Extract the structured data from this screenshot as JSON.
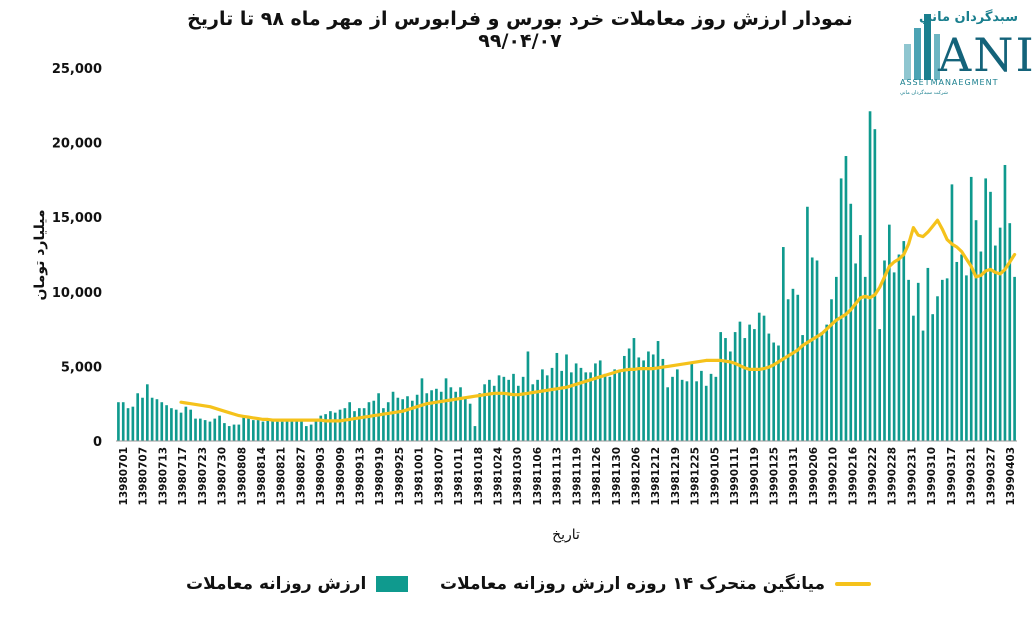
{
  "title": "نمودار ارزش روز معاملات خرد بورس و فرابورس از مهر ماه ۹۸ تا تاریخ ۹۹/۰۴/۰۷",
  "logo": {
    "name_fa": "سبدگردان ماني",
    "mark": "ANI",
    "name_en": "ASSETMANAEGMENT",
    "tagline": "شرکت سبدگردان ماني"
  },
  "colors": {
    "bar": "#0f9a8e",
    "line": "#f5c21b",
    "text": "#111111",
    "logo": "#1a7f8e"
  },
  "chart_data": {
    "type": "bar",
    "title": "نمودار ارزش روز معاملات خرد بورس و فرابورس از مهر ماه ۹۸ تا تاریخ ۹۹/۰۴/۰۷",
    "xlabel": "تاریخ",
    "ylabel": "میلیارد تومان",
    "ylim": [
      0,
      25000
    ],
    "yticks": [
      0,
      5000,
      10000,
      15000,
      20000,
      25000
    ],
    "ytick_labels": [
      "0",
      "5,000",
      "10,000",
      "15,000",
      "20,000",
      "25,000"
    ],
    "grid": false,
    "legend_position": "bottom",
    "xtick_labels": [
      "13980701",
      "13980707",
      "13980713",
      "13980717",
      "13980723",
      "13980730",
      "13980808",
      "13980814",
      "13980821",
      "13980827",
      "13980903",
      "13980909",
      "13980913",
      "13980919",
      "13980925",
      "13981001",
      "13981007",
      "13981011",
      "13981018",
      "13981024",
      "13981030",
      "13981106",
      "13981113",
      "13981119",
      "13981126",
      "13981130",
      "13981206",
      "13981212",
      "13981219",
      "13981225",
      "13990105",
      "13990111",
      "13990119",
      "13990125",
      "13990131",
      "13990206",
      "13990210",
      "13990216",
      "13990222",
      "13990228",
      "13990231",
      "13990310",
      "13990317",
      "13990321",
      "13990327",
      "13990403"
    ],
    "series": [
      {
        "name": "ارزش روزانه معاملات",
        "type": "bar",
        "values": [
          2600,
          2600,
          2200,
          2300,
          3200,
          2900,
          3800,
          2900,
          2800,
          2600,
          2400,
          2200,
          2100,
          1900,
          2300,
          2100,
          1500,
          1500,
          1400,
          1300,
          1500,
          1700,
          1200,
          1000,
          1100,
          1100,
          1700,
          1500,
          1400,
          1400,
          1300,
          1400,
          1400,
          1300,
          1300,
          1500,
          1400,
          1500,
          1500,
          1000,
          1100,
          1400,
          1700,
          1800,
          2000,
          1900,
          2100,
          2200,
          2600,
          2000,
          2200,
          2200,
          2600,
          2700,
          3200,
          2200,
          2600,
          3300,
          2900,
          2800,
          3000,
          2700,
          3100,
          4200,
          3200,
          3400,
          3500,
          3300,
          4200,
          3600,
          3300,
          3600,
          2900,
          2500,
          1000,
          3200,
          3800,
          4100,
          3700,
          4400,
          4300,
          4100,
          4500,
          3700,
          4300,
          6000,
          3800,
          4100,
          4800,
          4400,
          4900,
          5900,
          4700,
          5800,
          4600,
          5200,
          4900,
          4600,
          4600,
          5200,
          5400,
          4500,
          4300,
          4800,
          4700,
          5700,
          6200,
          6900,
          5600,
          5400,
          6000,
          5800,
          6700,
          5500,
          3600,
          4300,
          4800,
          4100,
          4000,
          5200,
          4000,
          4700,
          3700,
          4500,
          4300,
          7300,
          6900,
          6000,
          7300,
          8000,
          6900,
          7800,
          7500,
          8600,
          8400,
          7200,
          6600,
          6400,
          13000,
          9500,
          10200,
          9800,
          7100,
          15700,
          12300,
          12100,
          7300,
          7800,
          9500,
          11000,
          17600,
          19100,
          15900,
          11900,
          13800,
          11000,
          22100,
          20900,
          7500,
          12100,
          14500,
          11300,
          12500,
          13400,
          10800,
          8400,
          10600,
          7400,
          11600,
          8500,
          9700,
          10800,
          10900,
          17200,
          12000,
          12500,
          11100,
          17700,
          14800,
          12700,
          17600,
          16700,
          13100,
          14300,
          18500,
          14600,
          11000
        ]
      },
      {
        "name": "میانگین متحرک ۱۴ روزه ارزش روزانه معاملات",
        "type": "line",
        "start_index": 13,
        "values": [
          2600,
          2550,
          2500,
          2450,
          2400,
          2350,
          2300,
          2200,
          2100,
          2000,
          1900,
          1800,
          1700,
          1650,
          1600,
          1550,
          1500,
          1450,
          1450,
          1400,
          1400,
          1400,
          1400,
          1400,
          1400,
          1400,
          1400,
          1400,
          1400,
          1400,
          1350,
          1350,
          1350,
          1350,
          1400,
          1450,
          1500,
          1550,
          1600,
          1650,
          1700,
          1750,
          1800,
          1850,
          1900,
          1950,
          2000,
          2100,
          2200,
          2300,
          2400,
          2500,
          2550,
          2600,
          2650,
          2700,
          2750,
          2800,
          2850,
          2900,
          2950,
          3000,
          3050,
          3100,
          3150,
          3200,
          3200,
          3200,
          3150,
          3100,
          3100,
          3150,
          3200,
          3250,
          3300,
          3350,
          3400,
          3450,
          3500,
          3550,
          3600,
          3700,
          3800,
          3900,
          4000,
          4100,
          4200,
          4300,
          4400,
          4500,
          4600,
          4700,
          4750,
          4800,
          4800,
          4850,
          4850,
          4850,
          4850,
          4900,
          4950,
          5000,
          5050,
          5100,
          5150,
          5200,
          5250,
          5300,
          5350,
          5400,
          5400,
          5400,
          5400,
          5350,
          5300,
          5200,
          5050,
          4900,
          4800,
          4800,
          4800,
          4850,
          4950,
          5100,
          5300,
          5500,
          5700,
          5900,
          6100,
          6400,
          6600,
          6800,
          7000,
          7200,
          7500,
          7800,
          8100,
          8300,
          8500,
          8800,
          9200,
          9600,
          9700,
          9600,
          9800,
          10300,
          11000,
          11700,
          12000,
          12200,
          12500,
          13200,
          14300,
          13800,
          13700,
          14000,
          14400,
          14800,
          14200,
          13500,
          13200,
          13000,
          12700,
          12200,
          11700,
          11000,
          11100,
          11400,
          11500,
          11300,
          11200,
          11500,
          12000,
          12500,
          13000,
          13500,
          14000,
          14400,
          14600
        ]
      }
    ]
  }
}
